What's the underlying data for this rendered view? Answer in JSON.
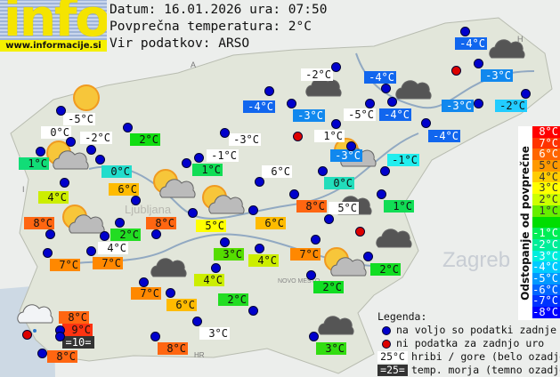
{
  "header": {
    "logo_text": "info",
    "site_url": "www.informacije.si",
    "date_line": "Datum: 16.01.2026 ura: 07:50",
    "avg_temp_line": "Povprečna temperatura: 2°C",
    "source_line": "Vir podatkov: ARSO"
  },
  "colors": {
    "station_ok": "#0000cc",
    "station_missing": "#dd0000",
    "hill_bg": "#ffffff",
    "sea_bg": "#333333"
  },
  "stations": [
    {
      "text": "-5°C",
      "bg": "#ffffff"
    },
    {
      "text": "0°C",
      "bg": "#ffffff"
    },
    {
      "text": "-2°C",
      "bg": "#ffffff"
    },
    {
      "text": "2°C",
      "bg": "#11dd11"
    },
    {
      "text": "1°C",
      "bg": "#11dd77"
    },
    {
      "text": "0°C",
      "bg": "#22ddcc"
    },
    {
      "text": "-1°C",
      "bg": "#ffffff"
    },
    {
      "text": "1°C",
      "bg": "#11dd55"
    },
    {
      "text": "-3°C",
      "bg": "#ffffff"
    },
    {
      "text": "-4°C",
      "bg": "#1166ee"
    },
    {
      "text": "6°C",
      "bg": "#ffffff"
    },
    {
      "text": "4°C",
      "bg": "#ccee00"
    },
    {
      "text": "6°C",
      "bg": "#ffbb00"
    },
    {
      "text": "8°C",
      "bg": "#ff6611"
    },
    {
      "text": "2°C",
      "bg": "#22dd22"
    },
    {
      "text": "8°C",
      "bg": "#ff6611"
    },
    {
      "text": "4°C",
      "bg": "#ffffff"
    },
    {
      "text": "7°C",
      "bg": "#ff8800"
    },
    {
      "text": "7°C",
      "bg": "#ff8800"
    },
    {
      "text": "5°C",
      "bg": "#ffff00"
    },
    {
      "text": "6°C",
      "bg": "#ffbb00"
    },
    {
      "text": "3°C",
      "bg": "#55dd00"
    },
    {
      "text": "4°C",
      "bg": "#ccee00"
    },
    {
      "text": "4°C",
      "bg": "#ccee00"
    },
    {
      "text": "7°C",
      "bg": "#ff8800"
    },
    {
      "text": "6°C",
      "bg": "#ffbb00"
    },
    {
      "text": "2°C",
      "bg": "#22dd22"
    },
    {
      "text": "8°C",
      "bg": "#ff6611"
    },
    {
      "text": "9°C",
      "bg": "#ff3311"
    },
    {
      "text": "=10=",
      "bg": "#333333"
    },
    {
      "text": "8°C",
      "bg": "#ff6611"
    },
    {
      "text": "3°C",
      "bg": "#ffffff"
    },
    {
      "text": "8°C",
      "bg": "#ff6611"
    },
    {
      "text": "-2°C",
      "bg": "#ffffff"
    },
    {
      "text": "-4°C",
      "bg": "#1166ee"
    },
    {
      "text": "-3°C",
      "bg": "#1188ee"
    },
    {
      "text": "-5°C",
      "bg": "#ffffff"
    },
    {
      "text": "-4°C",
      "bg": "#1166ee"
    },
    {
      "text": "1°C",
      "bg": "#ffffff"
    },
    {
      "text": "-4°C",
      "bg": "#1166ee"
    },
    {
      "text": "-3°C",
      "bg": "#1188ee"
    },
    {
      "text": "-1°C",
      "bg": "#22eeee"
    },
    {
      "text": "0°C",
      "bg": "#22ddbb"
    },
    {
      "text": "-4°C",
      "bg": "#1166ee"
    },
    {
      "text": "-3°C",
      "bg": "#1188ee"
    },
    {
      "text": "-3°C",
      "bg": "#1188ee"
    },
    {
      "text": "-2°C",
      "bg": "#22ccff"
    },
    {
      "text": "8°C",
      "bg": "#ff6611"
    },
    {
      "text": "5°C",
      "bg": "#ffffff"
    },
    {
      "text": "1°C",
      "bg": "#11dd55"
    },
    {
      "text": "7°C",
      "bg": "#ff8800"
    },
    {
      "text": "2°C",
      "bg": "#11dd22"
    },
    {
      "text": "2°C",
      "bg": "#11dd22"
    },
    {
      "text": "3°C",
      "bg": "#33dd11"
    }
  ],
  "weather_icons": [
    "sun",
    "sun-cloud",
    "sun-cloud",
    "sun-cloud",
    "sun-cloud",
    "cloud",
    "cloud",
    "cloud",
    "sun-cloud",
    "cloud",
    "cloud",
    "sun-cloud",
    "cloud",
    "rain",
    "cloud"
  ],
  "scale": {
    "title": "Odstopanje od povprečne temperature:",
    "steps": [
      {
        "label": "8°C",
        "color": "#ff0000"
      },
      {
        "label": "7°C",
        "color": "#ff3300"
      },
      {
        "label": "6°C",
        "color": "#ff6600"
      },
      {
        "label": "5°C",
        "color": "#ff9900"
      },
      {
        "label": "4°C",
        "color": "#ffcc00"
      },
      {
        "label": "3°C",
        "color": "#ffff00"
      },
      {
        "label": "2°C",
        "color": "#ccff00"
      },
      {
        "label": "1°C",
        "color": "#66ee00"
      },
      {
        "label": "",
        "color": "#00dd00"
      },
      {
        "label": "-1°C",
        "color": "#00ee55"
      },
      {
        "label": "-2°C",
        "color": "#00ee99"
      },
      {
        "label": "-3°C",
        "color": "#00eedd"
      },
      {
        "label": "-4°C",
        "color": "#00ccff"
      },
      {
        "label": "-5°C",
        "color": "#0099ff"
      },
      {
        "label": "-6°C",
        "color": "#0066ff"
      },
      {
        "label": "-7°C",
        "color": "#0033ff"
      },
      {
        "label": "-8°C",
        "color": "#0000ff"
      }
    ]
  },
  "legend": {
    "title": "Legenda:",
    "available": "na voljo so podatki zadnje ure",
    "missing": "ni podatka za zadnjo uro",
    "hill_sample": "25°C",
    "hill_text": "hribi / gore (belo ozadje)",
    "sea_sample": "=25=",
    "sea_text": "temp. morja (temno ozadje)"
  },
  "map_labels": {
    "zagreb": "Zagreb",
    "ljubljana": "Ljubljana",
    "novo_mesto": "NOVO MESTO",
    "austria": "A",
    "italy": "I",
    "hungary": "H",
    "croatia": "HR"
  }
}
